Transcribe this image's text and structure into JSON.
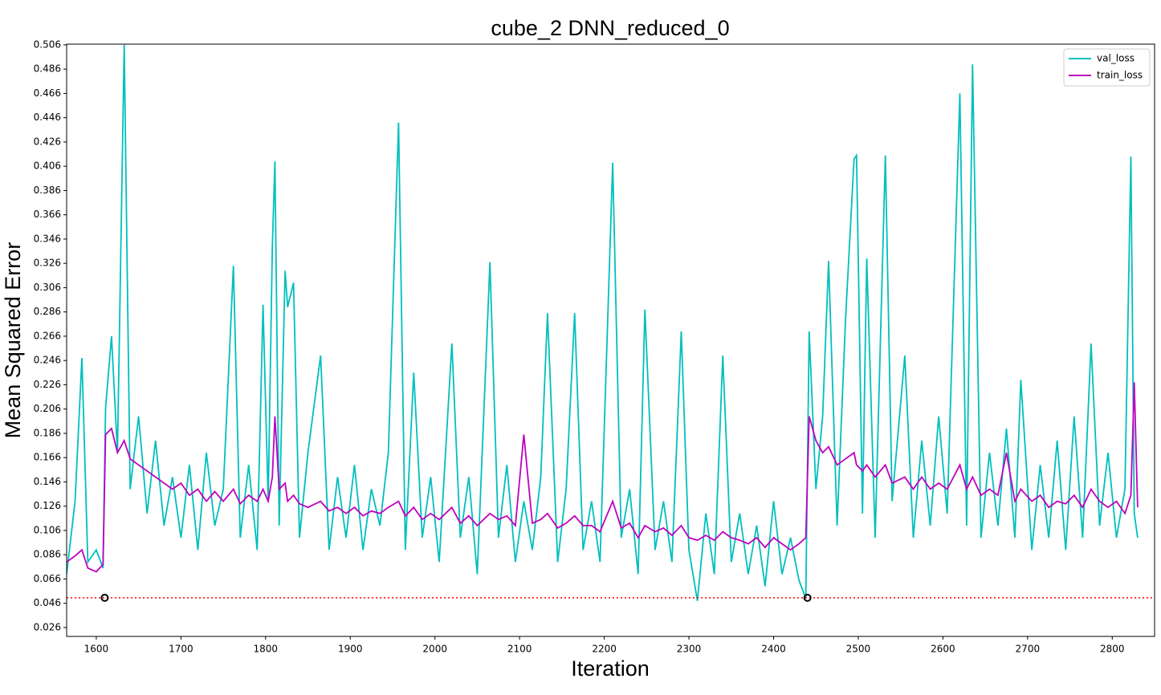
{
  "chart_data": {
    "type": "line",
    "title": "cube_2 DNN_reduced_0",
    "x_label": "Iteration",
    "y_label": "Mean Squared Error",
    "xlim": [
      1565,
      2850
    ],
    "ylim": [
      0.0187,
      0.5066
    ],
    "xticks": [
      1600,
      1700,
      1800,
      1900,
      2000,
      2100,
      2200,
      2300,
      2400,
      2500,
      2600,
      2700,
      2800
    ],
    "yticks": [
      0.026,
      0.046,
      0.066,
      0.086,
      0.106,
      0.126,
      0.146,
      0.166,
      0.186,
      0.206,
      0.226,
      0.246,
      0.266,
      0.286,
      0.306,
      0.326,
      0.346,
      0.366,
      0.386,
      0.406,
      0.426,
      0.446,
      0.466,
      0.486,
      0.506
    ],
    "legend": "upper right",
    "x": [
      1565,
      1575,
      1583,
      1590,
      1600,
      1608,
      1611,
      1618,
      1625,
      1633,
      1640,
      1650,
      1660,
      1670,
      1680,
      1690,
      1700,
      1710,
      1720,
      1730,
      1740,
      1750,
      1762,
      1770,
      1780,
      1790,
      1797,
      1803,
      1808,
      1811,
      1816,
      1823,
      1826,
      1833,
      1840,
      1850,
      1865,
      1875,
      1885,
      1895,
      1905,
      1915,
      1925,
      1935,
      1945,
      1957,
      1965,
      1975,
      1985,
      1995,
      2005,
      2020,
      2030,
      2040,
      2050,
      2065,
      2075,
      2085,
      2095,
      2105,
      2115,
      2125,
      2133,
      2145,
      2155,
      2165,
      2175,
      2185,
      2195,
      2210,
      2220,
      2230,
      2240,
      2248,
      2260,
      2270,
      2280,
      2291,
      2300,
      2310,
      2320,
      2330,
      2340,
      2350,
      2360,
      2370,
      2380,
      2390,
      2400,
      2410,
      2420,
      2430,
      2438,
      2442,
      2450,
      2458,
      2465,
      2475,
      2485,
      2495,
      2498,
      2505,
      2510,
      2520,
      2532,
      2540,
      2555,
      2565,
      2575,
      2585,
      2595,
      2605,
      2620,
      2628,
      2635,
      2645,
      2655,
      2665,
      2675,
      2685,
      2692,
      2705,
      2715,
      2725,
      2735,
      2745,
      2755,
      2765,
      2775,
      2785,
      2795,
      2805,
      2815,
      2822,
      2826,
      2830
    ],
    "series": [
      {
        "name": "val_loss",
        "color": "#00bfbf",
        "values": [
          0.07,
          0.13,
          0.248,
          0.08,
          0.09,
          0.075,
          0.207,
          0.266,
          0.17,
          0.506,
          0.14,
          0.2,
          0.12,
          0.18,
          0.11,
          0.15,
          0.1,
          0.16,
          0.09,
          0.17,
          0.11,
          0.14,
          0.324,
          0.1,
          0.16,
          0.09,
          0.292,
          0.13,
          0.34,
          0.41,
          0.11,
          0.32,
          0.29,
          0.31,
          0.1,
          0.17,
          0.25,
          0.09,
          0.15,
          0.1,
          0.16,
          0.09,
          0.14,
          0.11,
          0.17,
          0.442,
          0.09,
          0.236,
          0.1,
          0.15,
          0.08,
          0.26,
          0.1,
          0.15,
          0.07,
          0.327,
          0.1,
          0.16,
          0.08,
          0.13,
          0.09,
          0.15,
          0.285,
          0.08,
          0.14,
          0.285,
          0.09,
          0.13,
          0.08,
          0.409,
          0.1,
          0.14,
          0.07,
          0.288,
          0.09,
          0.13,
          0.08,
          0.27,
          0.09,
          0.048,
          0.12,
          0.07,
          0.25,
          0.08,
          0.12,
          0.07,
          0.11,
          0.06,
          0.13,
          0.07,
          0.1,
          0.065,
          0.05,
          0.27,
          0.14,
          0.2,
          0.328,
          0.11,
          0.28,
          0.412,
          0.415,
          0.12,
          0.33,
          0.1,
          0.415,
          0.13,
          0.25,
          0.1,
          0.18,
          0.11,
          0.2,
          0.12,
          0.466,
          0.11,
          0.49,
          0.1,
          0.17,
          0.11,
          0.19,
          0.1,
          0.23,
          0.09,
          0.16,
          0.1,
          0.18,
          0.09,
          0.2,
          0.1,
          0.26,
          0.11,
          0.17,
          0.1,
          0.14,
          0.414,
          0.12,
          0.1
        ]
      },
      {
        "name": "train_loss",
        "color": "#bf00bf",
        "values": [
          0.08,
          0.085,
          0.09,
          0.075,
          0.072,
          0.078,
          0.185,
          0.19,
          0.17,
          0.18,
          0.165,
          0.16,
          0.155,
          0.15,
          0.145,
          0.14,
          0.145,
          0.135,
          0.14,
          0.13,
          0.138,
          0.13,
          0.14,
          0.128,
          0.135,
          0.13,
          0.14,
          0.13,
          0.15,
          0.2,
          0.14,
          0.145,
          0.13,
          0.135,
          0.128,
          0.125,
          0.13,
          0.122,
          0.125,
          0.12,
          0.125,
          0.118,
          0.122,
          0.12,
          0.125,
          0.13,
          0.118,
          0.125,
          0.115,
          0.12,
          0.115,
          0.125,
          0.112,
          0.118,
          0.11,
          0.12,
          0.115,
          0.118,
          0.11,
          0.185,
          0.112,
          0.115,
          0.12,
          0.108,
          0.112,
          0.118,
          0.11,
          0.11,
          0.105,
          0.13,
          0.108,
          0.112,
          0.1,
          0.11,
          0.105,
          0.108,
          0.102,
          0.11,
          0.1,
          0.098,
          0.102,
          0.098,
          0.105,
          0.1,
          0.098,
          0.095,
          0.1,
          0.092,
          0.1,
          0.095,
          0.09,
          0.095,
          0.1,
          0.2,
          0.18,
          0.17,
          0.175,
          0.16,
          0.165,
          0.17,
          0.16,
          0.155,
          0.16,
          0.15,
          0.16,
          0.145,
          0.15,
          0.14,
          0.15,
          0.14,
          0.145,
          0.14,
          0.16,
          0.14,
          0.15,
          0.135,
          0.14,
          0.135,
          0.17,
          0.13,
          0.14,
          0.13,
          0.135,
          0.125,
          0.13,
          0.128,
          0.135,
          0.125,
          0.14,
          0.13,
          0.125,
          0.13,
          0.12,
          0.135,
          0.228,
          0.125
        ]
      }
    ],
    "threshold": {
      "value": 0.0505,
      "color": "#ff0000"
    },
    "markers": {
      "x": [
        1610,
        2440
      ],
      "y": [
        0.0505,
        0.0505
      ],
      "color": "#000000"
    }
  }
}
